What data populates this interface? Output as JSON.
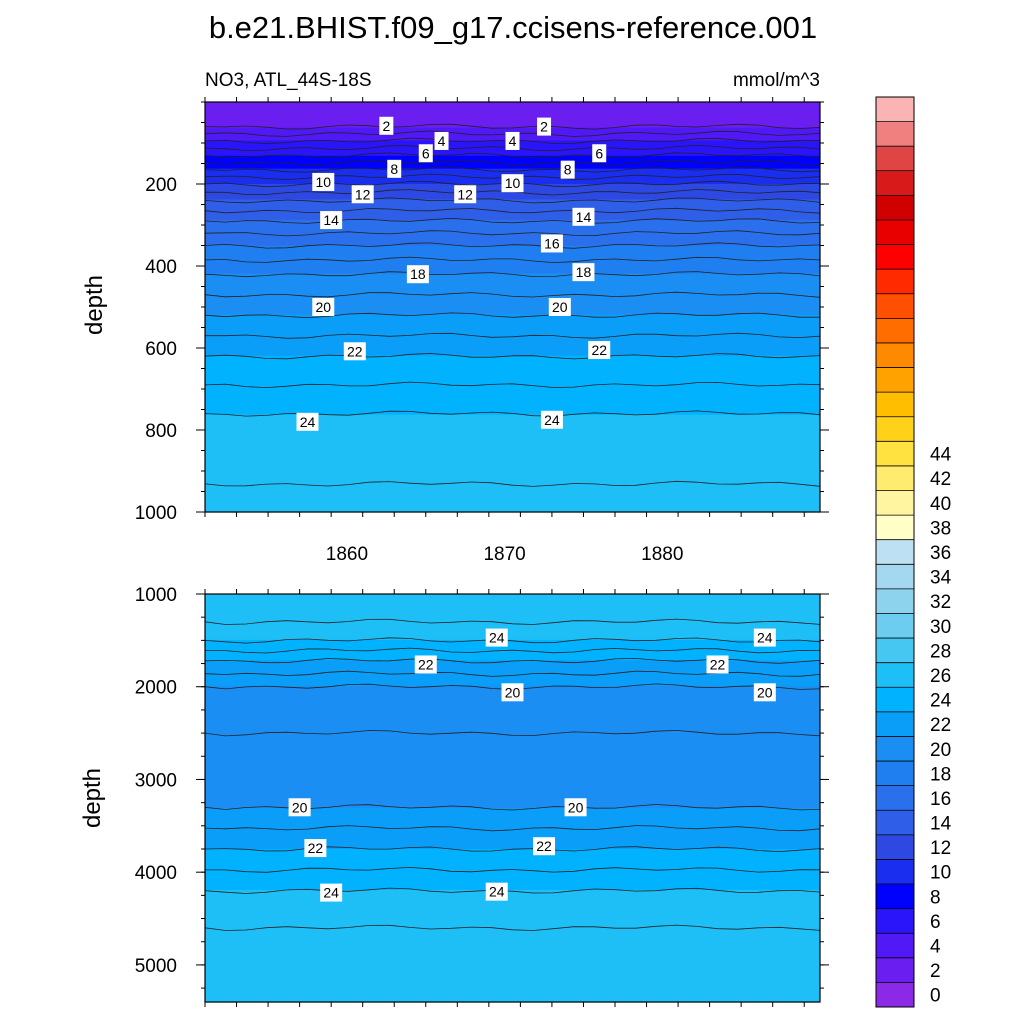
{
  "chart_data": {
    "type": "heatmap",
    "title": "b.e21.BHIST.f09_g17.ccisens-reference.001",
    "left_subtitle": "NO3, ATL_44S-18S",
    "right_subtitle": "mmol/m^3",
    "ylabel": "depth",
    "xlim": [
      1851,
      1890
    ],
    "x_tick_labels": [
      "1860",
      "1870",
      "1880"
    ],
    "x_ticks": [
      1860,
      1870,
      1880
    ],
    "colorbar": {
      "min": 0,
      "max": 46,
      "step": 2,
      "tick_labels": [
        "0",
        "2",
        "4",
        "6",
        "8",
        "10",
        "12",
        "14",
        "16",
        "18",
        "20",
        "22",
        "24",
        "26",
        "28",
        "30",
        "32",
        "34",
        "36",
        "38",
        "40",
        "42",
        "44"
      ],
      "colors": [
        "#8c29e6",
        "#6a1ff0",
        "#5019f5",
        "#2a15fa",
        "#0000ff",
        "#1a2eef",
        "#2d48e3",
        "#2f5ee8",
        "#2a70ec",
        "#1f7ff0",
        "#1b8ef3",
        "#0a9ef9",
        "#00b2ff",
        "#1ebef7",
        "#45c7f2",
        "#6ccdf0",
        "#8dd3ee",
        "#a3d8f0",
        "#bde1f3",
        "#ffffc8",
        "#fff5a0",
        "#ffeb6e",
        "#ffe240",
        "#ffd21a",
        "#ffbf00",
        "#ffa200",
        "#ff8a00",
        "#ff6c00",
        "#ff4f00",
        "#ff2a00",
        "#ff0000",
        "#e80000",
        "#d00000",
        "#d81a1a",
        "#e04545",
        "#f08080",
        "#fab4b4"
      ]
    },
    "panels": [
      {
        "ylim": [
          0,
          1000
        ],
        "y_ticks": [
          200,
          400,
          600,
          800,
          1000
        ],
        "y_tick_labels": [
          "200",
          "400",
          "600",
          "800",
          "1000"
        ],
        "profile": [
          {
            "depth": 0,
            "value": 0
          },
          {
            "depth": 25,
            "value": 0
          },
          {
            "depth": 60,
            "value": 2
          },
          {
            "depth": 95,
            "value": 4
          },
          {
            "depth": 130,
            "value": 6
          },
          {
            "depth": 165,
            "value": 8
          },
          {
            "depth": 200,
            "value": 10
          },
          {
            "depth": 240,
            "value": 12
          },
          {
            "depth": 290,
            "value": 14
          },
          {
            "depth": 350,
            "value": 16
          },
          {
            "depth": 420,
            "value": 18
          },
          {
            "depth": 520,
            "value": 20
          },
          {
            "depth": 620,
            "value": 22
          },
          {
            "depth": 760,
            "value": 24
          },
          {
            "depth": 1000,
            "value": 25.4
          }
        ],
        "contour_labels": [
          {
            "year": 1862.5,
            "depth": 58,
            "label": "2"
          },
          {
            "year": 1866.0,
            "depth": 95,
            "label": "4"
          },
          {
            "year": 1865.0,
            "depth": 125,
            "label": "6"
          },
          {
            "year": 1863.0,
            "depth": 163,
            "label": "8"
          },
          {
            "year": 1858.5,
            "depth": 195,
            "label": "10"
          },
          {
            "year": 1861.0,
            "depth": 225,
            "label": "12"
          },
          {
            "year": 1859.0,
            "depth": 288,
            "label": "14"
          },
          {
            "year": 1864.5,
            "depth": 420,
            "label": "18"
          },
          {
            "year": 1858.5,
            "depth": 500,
            "label": "20"
          },
          {
            "year": 1860.5,
            "depth": 608,
            "label": "22"
          },
          {
            "year": 1857.5,
            "depth": 780,
            "label": "24"
          },
          {
            "year": 1872.5,
            "depth": 60,
            "label": "2"
          },
          {
            "year": 1870.5,
            "depth": 95,
            "label": "4"
          },
          {
            "year": 1876.0,
            "depth": 125,
            "label": "6"
          },
          {
            "year": 1874.0,
            "depth": 165,
            "label": "8"
          },
          {
            "year": 1870.5,
            "depth": 198,
            "label": "10"
          },
          {
            "year": 1867.5,
            "depth": 225,
            "label": "12"
          },
          {
            "year": 1875.0,
            "depth": 280,
            "label": "14"
          },
          {
            "year": 1873.0,
            "depth": 345,
            "label": "16"
          },
          {
            "year": 1875.0,
            "depth": 415,
            "label": "18"
          },
          {
            "year": 1873.5,
            "depth": 500,
            "label": "20"
          },
          {
            "year": 1876.0,
            "depth": 605,
            "label": "22"
          },
          {
            "year": 1873.0,
            "depth": 775,
            "label": "24"
          }
        ]
      },
      {
        "ylim": [
          1000,
          5400
        ],
        "y_ticks": [
          1000,
          2000,
          3000,
          4000,
          5000
        ],
        "y_tick_labels": [
          "1000",
          "2000",
          "3000",
          "4000",
          "5000"
        ],
        "profile": [
          {
            "depth": 1000,
            "value": 25.6
          },
          {
            "depth": 1300,
            "value": 25
          },
          {
            "depth": 1500,
            "value": 24
          },
          {
            "depth": 1720,
            "value": 22
          },
          {
            "depth": 2000,
            "value": 20
          },
          {
            "depth": 2500,
            "value": 19
          },
          {
            "depth": 3300,
            "value": 20
          },
          {
            "depth": 3750,
            "value": 22
          },
          {
            "depth": 4200,
            "value": 24
          },
          {
            "depth": 4600,
            "value": 25
          },
          {
            "depth": 5400,
            "value": 25.4
          }
        ],
        "contour_labels": [
          {
            "year": 1869.5,
            "depth": 1470,
            "label": "24"
          },
          {
            "year": 1886.5,
            "depth": 1470,
            "label": "24"
          },
          {
            "year": 1865.0,
            "depth": 1760,
            "label": "22"
          },
          {
            "year": 1883.5,
            "depth": 1760,
            "label": "22"
          },
          {
            "year": 1870.5,
            "depth": 2060,
            "label": "20"
          },
          {
            "year": 1886.5,
            "depth": 2060,
            "label": "20"
          },
          {
            "year": 1857.0,
            "depth": 3300,
            "label": "20"
          },
          {
            "year": 1874.5,
            "depth": 3300,
            "label": "20"
          },
          {
            "year": 1858.0,
            "depth": 3740,
            "label": "22"
          },
          {
            "year": 1872.5,
            "depth": 3720,
            "label": "22"
          },
          {
            "year": 1859.0,
            "depth": 4220,
            "label": "24"
          },
          {
            "year": 1869.5,
            "depth": 4210,
            "label": "24"
          }
        ]
      }
    ]
  }
}
